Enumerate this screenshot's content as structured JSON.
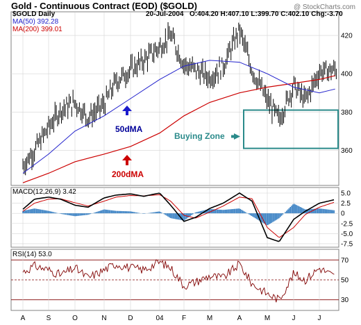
{
  "header": {
    "title": "Gold - Continuous Contract (EOD) ($GOLD)",
    "copyright": "@ StockCharts.com",
    "symbol_label": "$GOLD Daily",
    "date": "20-Jul-2004",
    "ohlc": "O:404.20 H:407.10 L:399.70 C:402.10 Chg:-3.70"
  },
  "colors": {
    "price": "#000000",
    "ma50": "#2222cc",
    "ma200": "#cc0000",
    "macd_line": "#000000",
    "macd_signal": "#cc0000",
    "macd_hist": "#3b82c4",
    "rsi": "#800000",
    "buying_zone": "#2a8a8a",
    "label_50dma": "#000099",
    "label_200dma": "#cc0000"
  },
  "legend": {
    "ma50": "MA(50) 392.28",
    "ma200": "MA(200) 399.01",
    "macd": "MACD(12,26,9) 3.42",
    "rsi": "RSI(14) 53.0"
  },
  "annotations": {
    "ma50_label": "50dMA",
    "ma200_label": "200dMA",
    "buying_zone_label": "Buying Zone"
  },
  "chart_data": [
    {
      "type": "line",
      "panel": "price",
      "ylim": [
        342,
        432
      ],
      "yticks": [
        "420",
        "400",
        "380",
        "360"
      ],
      "x_month_labels": [
        "A",
        "S",
        "O",
        "N",
        "D",
        "04",
        "F",
        "M",
        "A",
        "M",
        "J",
        "J"
      ],
      "series": [
        {
          "name": "$GOLD Daily",
          "x": [
            "Aug-1",
            "Aug-15",
            "Sep-1",
            "Sep-15",
            "Oct-1",
            "Oct-15",
            "Nov-1",
            "Nov-15",
            "Dec-1",
            "Dec-15",
            "Jan-1",
            "Jan-15",
            "Feb-1",
            "Feb-15",
            "Mar-1",
            "Mar-15",
            "Apr-1",
            "Apr-15",
            "May-1",
            "May-15",
            "Jun-1",
            "Jun-15",
            "Jul-1",
            "Jul-20"
          ],
          "values": [
            352,
            360,
            372,
            381,
            385,
            377,
            384,
            396,
            402,
            407,
            414,
            420,
            405,
            402,
            398,
            404,
            423,
            402,
            386,
            376,
            394,
            386,
            401,
            402
          ]
        },
        {
          "name": "MA(50) 392.28",
          "x": [
            "Aug-1",
            "Sep-1",
            "Oct-1",
            "Nov-1",
            "Dec-1",
            "Jan-1",
            "Feb-1",
            "Mar-1",
            "Apr-1",
            "May-1",
            "Jun-1",
            "Jul-1",
            "Jul-20"
          ],
          "values": [
            348,
            358,
            370,
            378,
            387,
            397,
            404,
            407,
            406,
            400,
            393,
            390,
            392
          ]
        },
        {
          "name": "MA(200) 399.01",
          "x": [
            "Aug-1",
            "Sep-1",
            "Oct-1",
            "Nov-1",
            "Dec-1",
            "Jan-1",
            "Feb-1",
            "Mar-1",
            "Apr-1",
            "May-1",
            "Jun-1",
            "Jul-1",
            "Jul-20"
          ],
          "values": [
            343,
            348,
            354,
            358,
            362,
            369,
            378,
            385,
            390,
            393,
            395,
            397,
            399
          ]
        }
      ],
      "zone": {
        "label": "Buying Zone",
        "x_start": "May-1",
        "x_end": "Jul-31",
        "y_low": 361,
        "y_high": 381
      }
    },
    {
      "type": "line",
      "panel": "macd",
      "ylim": [
        -8.2,
        6.2
      ],
      "yticks": [
        "5.0",
        "2.5",
        "0",
        "-2.5",
        "-5.0",
        "-7.5"
      ],
      "series": [
        {
          "name": "MACD(12,26,9) 3.42",
          "x": [
            "Aug-1",
            "Aug-15",
            "Sep-1",
            "Sep-15",
            "Oct-1",
            "Oct-15",
            "Nov-1",
            "Nov-15",
            "Dec-1",
            "Dec-15",
            "Jan-1",
            "Jan-15",
            "Feb-1",
            "Feb-15",
            "Mar-1",
            "Mar-15",
            "Apr-1",
            "Apr-15",
            "May-1",
            "May-15",
            "Jun-1",
            "Jun-15",
            "Jul-1",
            "Jul-20"
          ],
          "values": [
            1.0,
            3.5,
            4.0,
            3.5,
            2.0,
            1.5,
            3.8,
            4.5,
            4.8,
            4.2,
            5.0,
            2.0,
            -2.0,
            -1.0,
            1.2,
            2.5,
            5.0,
            3.0,
            -6.0,
            -7.0,
            -1.5,
            0.5,
            2.5,
            3.4
          ]
        },
        {
          "name": "Signal",
          "x": [
            "Aug-1",
            "Aug-15",
            "Sep-1",
            "Sep-15",
            "Oct-1",
            "Oct-15",
            "Nov-1",
            "Nov-15",
            "Dec-1",
            "Dec-15",
            "Jan-1",
            "Jan-15",
            "Feb-1",
            "Feb-15",
            "Mar-1",
            "Mar-15",
            "Apr-1",
            "Apr-15",
            "May-1",
            "May-15",
            "Jun-1",
            "Jun-15",
            "Jul-1",
            "Jul-20"
          ],
          "values": [
            0.5,
            2.5,
            3.5,
            3.6,
            2.6,
            1.8,
            3.0,
            4.0,
            4.4,
            4.3,
            4.6,
            3.0,
            -0.5,
            -1.2,
            0.3,
            1.8,
            4.0,
            3.6,
            -3.5,
            -6.0,
            -3.5,
            -0.3,
            1.5,
            2.8
          ]
        }
      ]
    },
    {
      "type": "line",
      "panel": "rsi",
      "ylim": [
        20,
        80
      ],
      "yticks": [
        "70",
        "50",
        "30"
      ],
      "series": [
        {
          "name": "RSI(14) 53.0",
          "x": [
            "Aug-1",
            "Aug-15",
            "Sep-1",
            "Sep-15",
            "Oct-1",
            "Oct-15",
            "Nov-1",
            "Nov-15",
            "Dec-1",
            "Dec-15",
            "Jan-1",
            "Jan-15",
            "Feb-1",
            "Feb-15",
            "Mar-1",
            "Mar-15",
            "Apr-1",
            "Apr-15",
            "May-1",
            "May-15",
            "Jun-1",
            "Jun-15",
            "Jul-1",
            "Jul-20"
          ],
          "values": [
            58,
            64,
            60,
            55,
            62,
            52,
            60,
            66,
            62,
            60,
            68,
            62,
            44,
            48,
            54,
            52,
            66,
            46,
            36,
            30,
            56,
            50,
            62,
            53
          ]
        }
      ]
    }
  ]
}
